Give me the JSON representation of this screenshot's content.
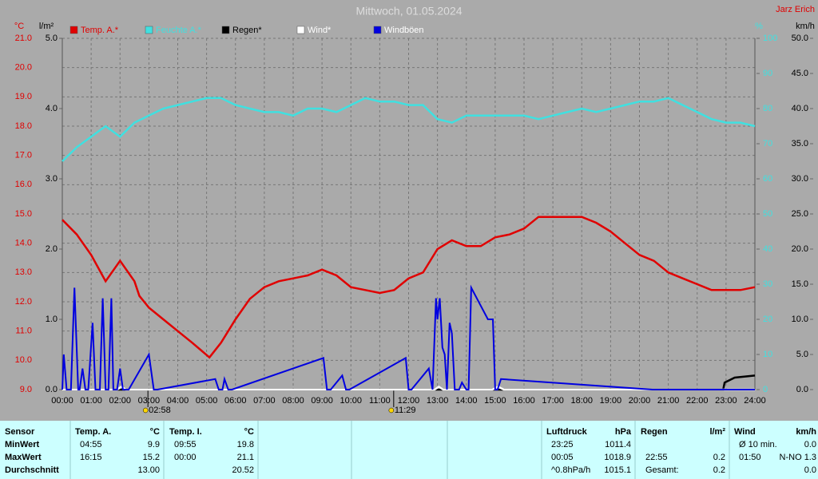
{
  "chart_data": {
    "type": "line",
    "title": "Mittwoch, 01.05.2024",
    "source": "Jarz Erich",
    "xlim": [
      0,
      24
    ],
    "xticks": [
      {
        "value": 0,
        "label": "00:00"
      },
      {
        "value": 1,
        "label": "01:00"
      },
      {
        "value": 2,
        "label": "02:00"
      },
      {
        "value": 3,
        "label": "03:00"
      },
      {
        "value": 4,
        "label": "04:00"
      },
      {
        "value": 5,
        "label": "05:00"
      },
      {
        "value": 6,
        "label": "06:00"
      },
      {
        "value": 7,
        "label": "07:00"
      },
      {
        "value": 8,
        "label": "08:00"
      },
      {
        "value": 9,
        "label": "09:00"
      },
      {
        "value": 10,
        "label": "10:00"
      },
      {
        "value": 11,
        "label": "11:00"
      },
      {
        "value": 12,
        "label": "12:00"
      },
      {
        "value": 13,
        "label": "13:00"
      },
      {
        "value": 14,
        "label": "14:00"
      },
      {
        "value": 15,
        "label": "15:00"
      },
      {
        "value": 16,
        "label": "16:00"
      },
      {
        "value": 17,
        "label": "17:00"
      },
      {
        "value": 18,
        "label": "18:00"
      },
      {
        "value": 19,
        "label": "19:00"
      },
      {
        "value": 20,
        "label": "20:00"
      },
      {
        "value": 21,
        "label": "21:00"
      },
      {
        "value": 22,
        "label": "22:00"
      },
      {
        "value": 23,
        "label": "23:00"
      },
      {
        "value": 24,
        "label": "24:00"
      }
    ],
    "y_label": "°C",
    "ylim": [
      9,
      21
    ],
    "yticks": [
      {
        "value": 9,
        "label": "9.0"
      },
      {
        "value": 10,
        "label": "10.0"
      },
      {
        "value": 11,
        "label": "11.0"
      },
      {
        "value": 12,
        "label": "12.0"
      },
      {
        "value": 13,
        "label": "13.0"
      },
      {
        "value": 14,
        "label": "14.0"
      },
      {
        "value": 15,
        "label": "15.0"
      },
      {
        "value": 16,
        "label": "16.0"
      },
      {
        "value": 17,
        "label": "17.0"
      },
      {
        "value": 18,
        "label": "18.0"
      },
      {
        "value": 19,
        "label": "19.0"
      },
      {
        "value": 20,
        "label": "20.0"
      },
      {
        "value": 21,
        "label": "21.0"
      }
    ],
    "y2_label": "l/m²",
    "y2lim": [
      0,
      5
    ],
    "y2ticks": [
      {
        "value": 0,
        "label": "0.0"
      },
      {
        "value": 1,
        "label": "1.0"
      },
      {
        "value": 2,
        "label": "2.0"
      },
      {
        "value": 3,
        "label": "3.0"
      },
      {
        "value": 4,
        "label": "4.0"
      },
      {
        "value": 5,
        "label": "5.0"
      }
    ],
    "y3_label": "%",
    "y3lim": [
      0,
      100
    ],
    "y3ticks": [
      0,
      10,
      20,
      30,
      40,
      50,
      60,
      70,
      80,
      90,
      100
    ],
    "y4_label": "km/h",
    "y4lim": [
      0,
      50
    ],
    "y4ticks": [
      {
        "value": 0,
        "label": "0.0"
      },
      {
        "value": 5,
        "label": "5.0"
      },
      {
        "value": 10,
        "label": "10.0"
      },
      {
        "value": 15,
        "label": "15.0"
      },
      {
        "value": 20,
        "label": "20.0"
      },
      {
        "value": 25,
        "label": "25.0"
      },
      {
        "value": 30,
        "label": "30.0"
      },
      {
        "value": 35,
        "label": "35.0"
      },
      {
        "value": 40,
        "label": "40.0"
      },
      {
        "value": 45,
        "label": "45.0"
      },
      {
        "value": 50,
        "label": "50.0"
      }
    ],
    "grid": true,
    "annotations": [
      {
        "x": 2.967,
        "label": "02:58"
      },
      {
        "x": 11.483,
        "label": "11:29"
      }
    ],
    "series": [
      {
        "name": "Temp. A.*",
        "color": "#e00000",
        "axis": "y",
        "x": [
          0,
          0.5,
          1,
          1.5,
          2,
          2.5,
          2.67,
          3,
          3.5,
          4,
          4.5,
          5.1,
          5.5,
          6,
          6.5,
          7,
          7.5,
          8,
          8.5,
          9,
          9.5,
          10,
          10.5,
          11,
          11.5,
          12,
          12.5,
          13,
          13.5,
          14,
          14.5,
          15,
          15.5,
          16,
          16.5,
          17,
          17.5,
          18,
          18.5,
          19,
          19.5,
          20,
          20.5,
          21,
          21.5,
          22,
          22.5,
          23,
          23.5,
          24
        ],
        "values": [
          14.8,
          14.3,
          13.6,
          12.7,
          13.4,
          12.7,
          12.2,
          11.8,
          11.4,
          11.0,
          10.6,
          10.1,
          10.6,
          11.4,
          12.1,
          12.5,
          12.7,
          12.8,
          12.9,
          13.1,
          12.9,
          12.5,
          12.4,
          12.3,
          12.4,
          12.8,
          13.0,
          13.8,
          14.1,
          13.9,
          13.9,
          14.2,
          14.3,
          14.5,
          14.9,
          14.9,
          14.9,
          14.9,
          14.7,
          14.4,
          14.0,
          13.6,
          13.4,
          13.0,
          12.8,
          12.6,
          12.4,
          12.4,
          12.4,
          12.5
        ]
      },
      {
        "name": "Feuchte A.*",
        "color": "#40e0e0",
        "axis": "y3",
        "x": [
          0,
          0.5,
          1,
          1.5,
          2,
          2.5,
          3,
          3.5,
          4,
          4.5,
          5,
          5.5,
          6,
          6.5,
          7,
          7.5,
          8,
          8.5,
          9,
          9.5,
          10,
          10.5,
          11,
          11.5,
          12,
          12.5,
          13,
          13.5,
          14,
          14.5,
          15,
          15.5,
          16,
          16.5,
          17,
          17.5,
          18,
          18.5,
          19,
          19.5,
          20,
          20.5,
          21,
          21.5,
          22,
          22.5,
          23,
          23.5,
          24
        ],
        "values": [
          65,
          69,
          72,
          75,
          72,
          76,
          78,
          80,
          81,
          82,
          83,
          83,
          81,
          80,
          79,
          79,
          78,
          80,
          80,
          79,
          81,
          83,
          82,
          82,
          81,
          81,
          77,
          76,
          78,
          78,
          78,
          78,
          78,
          77,
          78,
          79,
          80,
          79,
          80,
          81,
          82,
          82,
          83,
          81,
          79,
          77,
          76,
          76,
          75
        ]
      },
      {
        "name": "Regen*",
        "color": "#000000",
        "axis": "y2",
        "x": [
          0,
          22.9,
          22.95,
          23.3,
          24
        ],
        "values": [
          0,
          0,
          0.1,
          0.17,
          0.2
        ]
      },
      {
        "name": "Wind*",
        "color": "#ffffff",
        "axis": "y4",
        "x": [
          0,
          1.9,
          2.05,
          2.2,
          12.9,
          13.05,
          13.2,
          14.9,
          15.1,
          15.3,
          24
        ],
        "values": [
          0,
          0,
          0.4,
          0,
          0,
          0.4,
          0,
          0,
          0.4,
          0,
          0
        ]
      },
      {
        "name": "Windböen",
        "color": "#0000e0",
        "axis": "y4",
        "x": [
          0,
          0.05,
          0.15,
          0.3,
          0.42,
          0.55,
          0.6,
          0.7,
          0.8,
          0.9,
          1.05,
          1.15,
          1.3,
          1.4,
          1.5,
          1.6,
          1.7,
          1.77,
          1.9,
          2.0,
          2.1,
          2.17,
          2.3,
          3.0,
          3.17,
          3.3,
          5.3,
          5.42,
          5.55,
          5.62,
          5.75,
          5.88,
          9.05,
          9.17,
          9.3,
          9.7,
          9.83,
          9.95,
          11.9,
          12.0,
          12.1,
          12.7,
          12.83,
          12.95,
          13.0,
          13.08,
          13.17,
          13.25,
          13.33,
          13.42,
          13.5,
          13.6,
          13.75,
          13.85,
          14.0,
          14.08,
          14.17,
          14.75,
          14.92,
          15.0,
          15.08,
          15.2,
          20.45,
          20.58,
          20.7,
          24
        ],
        "values": [
          0,
          5,
          0,
          0,
          14.5,
          0,
          0,
          3,
          0,
          0,
          9.5,
          0,
          0,
          13,
          0,
          0,
          13,
          0,
          0,
          3,
          0,
          0,
          0,
          5,
          0,
          0,
          1.5,
          0,
          0,
          1.5,
          0,
          0,
          4.5,
          0,
          0,
          2,
          0,
          0,
          4.5,
          0,
          0,
          3,
          0,
          13,
          10,
          13,
          6,
          5,
          0,
          9.5,
          8,
          0,
          0,
          1,
          0,
          0,
          14.5,
          10,
          10,
          0,
          0,
          1.5,
          0,
          0,
          0,
          0
        ]
      }
    ]
  },
  "table": {
    "headers": [
      [
        "Sensor"
      ],
      [
        "Temp. A.",
        "°C"
      ],
      [
        "Temp. I.",
        "°C"
      ],
      [
        "Luftdruck",
        "hPa"
      ],
      [
        "Regen",
        "l/m²"
      ],
      [
        "Wind",
        "km/h"
      ]
    ],
    "labels": [
      "MinWert",
      "MaxWert",
      "Durchschnitt"
    ],
    "blocks": [
      [
        [
          "04:55",
          "9.9"
        ],
        [
          "16:15",
          "15.2"
        ],
        [
          null,
          "13.00"
        ]
      ],
      [
        [
          "09:55",
          "19.8"
        ],
        [
          "00:00",
          "21.1"
        ],
        [
          null,
          "20.52"
        ]
      ],
      [
        [
          "23:25",
          "1011.4"
        ],
        [
          "00:05",
          "1018.9"
        ],
        [
          "^0.8hPa/h",
          "1015.1"
        ]
      ],
      [
        [
          null,
          null
        ],
        [
          "22:55",
          "0.2"
        ],
        [
          "Gesamt:",
          "0.2"
        ]
      ],
      [
        [
          "Ø 10 min.",
          "0.0"
        ],
        [
          "01:50",
          "N-NO 1.3"
        ],
        [
          null,
          "0.0"
        ]
      ]
    ]
  }
}
